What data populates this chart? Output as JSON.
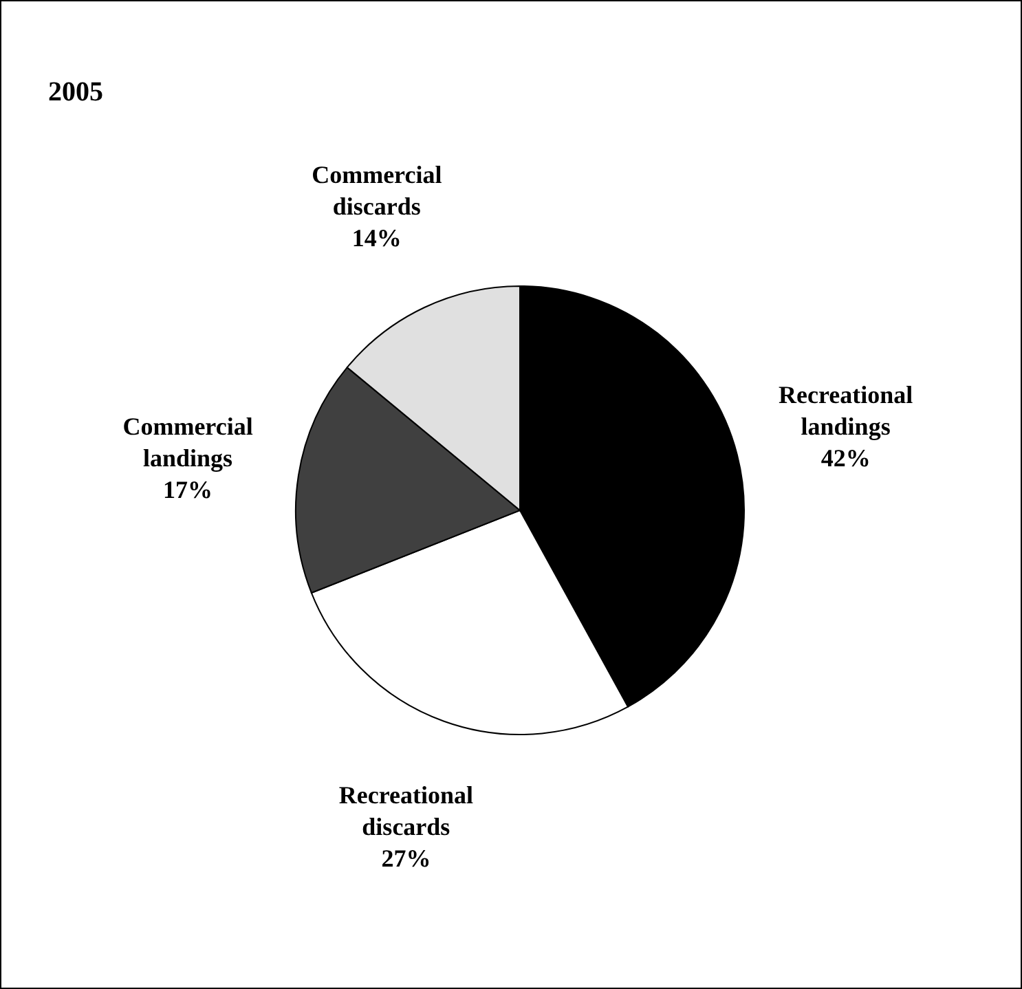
{
  "chart_data": {
    "type": "pie",
    "title": "2005",
    "categories": [
      "Recreational landings",
      "Recreational discards",
      "Commercial landings",
      "Commercial discards"
    ],
    "values": [
      42,
      27,
      17,
      14
    ],
    "colors": [
      "#000000",
      "#ffffff",
      "#404040",
      "#e0e0e0"
    ],
    "value_labels": [
      "42%",
      "27%",
      "17%",
      "14%"
    ]
  }
}
